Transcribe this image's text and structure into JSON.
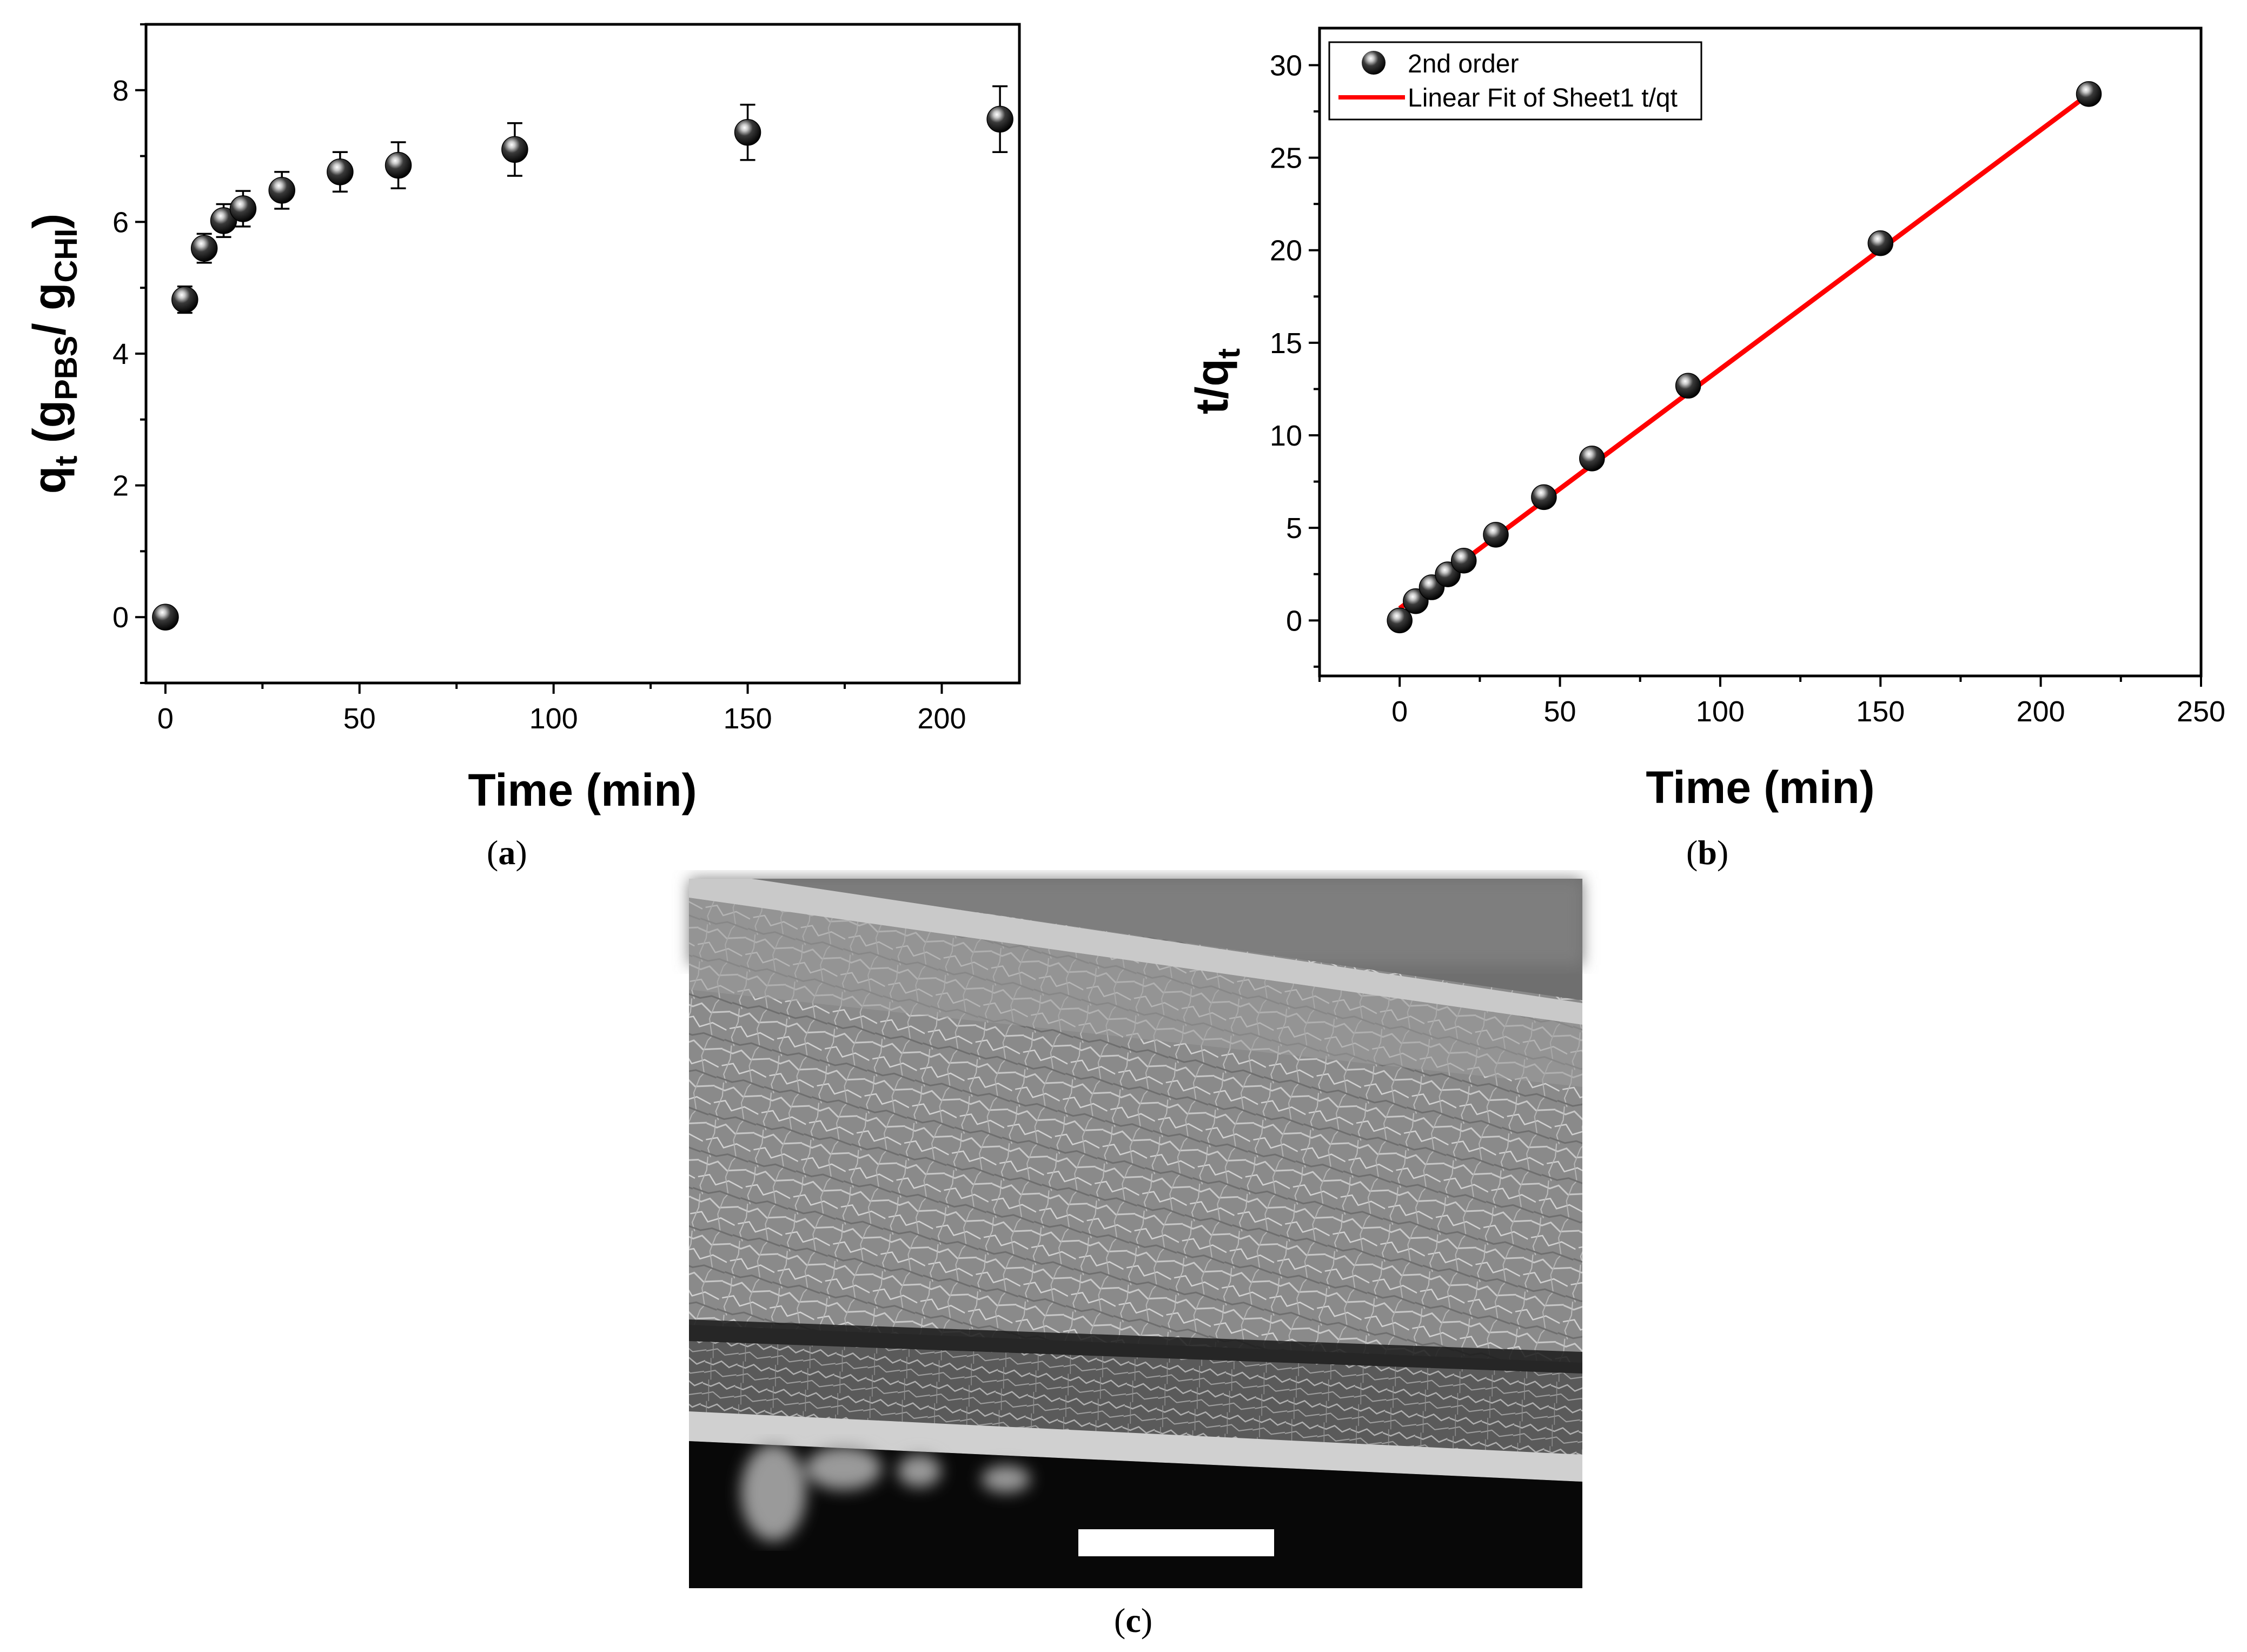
{
  "chart_data": [
    {
      "type": "scatter",
      "panel_label": "(a)",
      "caption_letter": "a",
      "xlabel": "Time (min)",
      "ylabel": {
        "main": "q",
        "sub_t": "t",
        "open": " (g",
        "sub_pbs": "PBS",
        "slash": "/ g",
        "sub_chi": "CHI",
        "close": ")"
      },
      "xlim": [
        -5,
        220
      ],
      "ylim": [
        -1,
        9
      ],
      "xticks": [
        0,
        50,
        100,
        150,
        200
      ],
      "yticks": [
        0,
        2,
        4,
        6,
        8
      ],
      "series": [
        {
          "name": "qt",
          "x": [
            0,
            5,
            10,
            15,
            20,
            30,
            45,
            60,
            90,
            150,
            215
          ],
          "y": [
            0,
            4.82,
            5.6,
            6.02,
            6.2,
            6.48,
            6.76,
            6.86,
            7.1,
            7.36,
            7.56
          ],
          "err": [
            0,
            0.2,
            0.22,
            0.25,
            0.27,
            0.28,
            0.3,
            0.35,
            0.4,
            0.42,
            0.5
          ]
        }
      ]
    },
    {
      "type": "scatter",
      "panel_label": "(b)",
      "caption_letter": "b",
      "xlabel": "Time (min)",
      "ylabel": {
        "main": "t/q",
        "sub_t": "t"
      },
      "xlim": [
        -25,
        250
      ],
      "ylim": [
        -3,
        32
      ],
      "xticks": [
        0,
        50,
        100,
        150,
        200,
        250
      ],
      "yticks": [
        0,
        5,
        10,
        15,
        20,
        25,
        30
      ],
      "legend": {
        "position": "top-left",
        "entries": [
          "2nd order",
          "Linear Fit of Sheet1 t/qt"
        ]
      },
      "series": [
        {
          "name": "2nd order",
          "x": [
            0,
            5,
            10,
            15,
            20,
            30,
            45,
            60,
            90,
            150,
            215
          ],
          "y": [
            0,
            1.04,
            1.79,
            2.49,
            3.23,
            4.63,
            6.66,
            8.75,
            12.68,
            20.38,
            28.44
          ]
        },
        {
          "name": "Linear Fit of Sheet1 t/qt",
          "type": "line",
          "color": "#ff0000",
          "x": [
            0,
            215
          ],
          "y": [
            0.65,
            28.44
          ]
        }
      ]
    }
  ],
  "sem_image": {
    "caption_letter": "c",
    "description_label": "SEM cross-section"
  },
  "colors": {
    "fit_line": "#ff0000",
    "marker": "#000000"
  }
}
